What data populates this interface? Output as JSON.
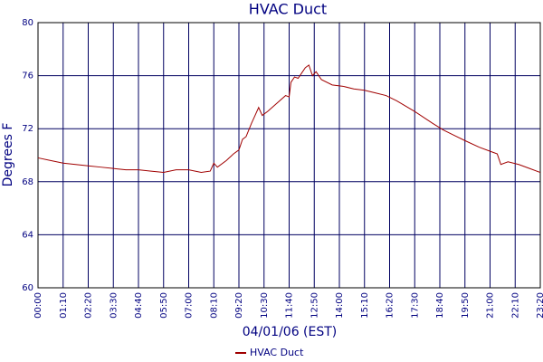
{
  "chart_data": {
    "type": "line",
    "title": "HVAC Duct",
    "x_label": "04/01/06 (EST)",
    "y_label": "Degrees F",
    "x": [
      0,
      35,
      70,
      105,
      140,
      175,
      210,
      245,
      280,
      315,
      350,
      385,
      420,
      455,
      480,
      490,
      500,
      525,
      545,
      560,
      570,
      580,
      595,
      605,
      615,
      625,
      640,
      665,
      690,
      700,
      705,
      715,
      725,
      735,
      745,
      755,
      765,
      775,
      790,
      820,
      850,
      880,
      910,
      940,
      970,
      1000,
      1050,
      1100,
      1130,
      1160,
      1190,
      1230,
      1260,
      1280,
      1290,
      1310,
      1340,
      1370,
      1400
    ],
    "series": [
      {
        "name": "HVAC Duct",
        "color": "#a00000",
        "values": [
          69.8,
          69.6,
          69.4,
          69.3,
          69.2,
          69.1,
          69.0,
          68.9,
          68.9,
          68.8,
          68.7,
          68.9,
          68.9,
          68.7,
          68.8,
          69.4,
          69.1,
          69.6,
          70.1,
          70.4,
          71.2,
          71.4,
          72.4,
          73.0,
          73.6,
          73.0,
          73.3,
          73.9,
          74.5,
          74.4,
          75.5,
          75.9,
          75.8,
          76.2,
          76.6,
          76.8,
          76.0,
          76.3,
          75.7,
          75.3,
          75.2,
          75.0,
          74.9,
          74.7,
          74.5,
          74.1,
          73.3,
          72.4,
          71.9,
          71.5,
          71.1,
          70.6,
          70.3,
          70.1,
          69.3,
          69.5,
          69.3,
          69.0,
          68.7
        ]
      }
    ],
    "xlim": [
      0,
      1400
    ],
    "xticks": [
      {
        "value": 0,
        "label": "00:00"
      },
      {
        "value": 70,
        "label": "01:10"
      },
      {
        "value": 140,
        "label": "02:20"
      },
      {
        "value": 210,
        "label": "03:30"
      },
      {
        "value": 280,
        "label": "04:40"
      },
      {
        "value": 350,
        "label": "05:50"
      },
      {
        "value": 420,
        "label": "07:00"
      },
      {
        "value": 490,
        "label": "08:10"
      },
      {
        "value": 560,
        "label": "09:20"
      },
      {
        "value": 630,
        "label": "10:30"
      },
      {
        "value": 700,
        "label": "11:40"
      },
      {
        "value": 770,
        "label": "12:50"
      },
      {
        "value": 840,
        "label": "14:00"
      },
      {
        "value": 910,
        "label": "15:10"
      },
      {
        "value": 980,
        "label": "16:20"
      },
      {
        "value": 1050,
        "label": "17:30"
      },
      {
        "value": 1120,
        "label": "18:40"
      },
      {
        "value": 1190,
        "label": "19:50"
      },
      {
        "value": 1260,
        "label": "21:00"
      },
      {
        "value": 1330,
        "label": "22:10"
      },
      {
        "value": 1400,
        "label": "23:20"
      }
    ],
    "ylim": [
      60,
      80
    ],
    "yticks": [
      60,
      64,
      68,
      72,
      76,
      80
    ],
    "grid": true
  }
}
